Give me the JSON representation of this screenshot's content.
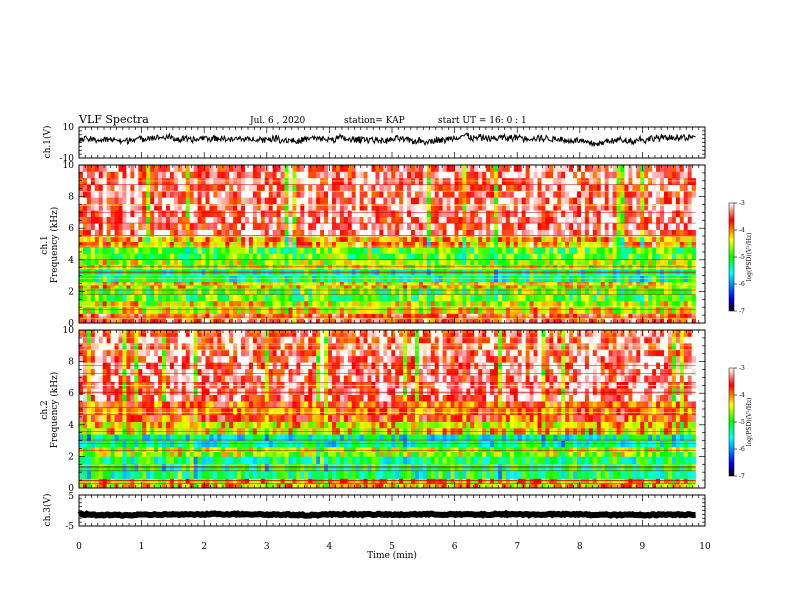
{
  "header": {
    "title": "VLF Spectra",
    "date": "Jul. 6 , 2020",
    "station": "station= KAP",
    "start": "start UT = 16: 0 : 1"
  },
  "chart_data": {
    "type": "heatmap",
    "xlabel": "Time (min)",
    "xlim": [
      0,
      10
    ],
    "xticks": [
      "0",
      "1",
      "2",
      "3",
      "4",
      "5",
      "6",
      "7",
      "8",
      "9",
      "10"
    ],
    "data_end_min": 9.85,
    "panels": [
      {
        "id": "ch1-waveform",
        "type": "line",
        "ylabel": "ch.1(V)",
        "ylim": [
          -10,
          10
        ],
        "yticks": [
          "10",
          "-10"
        ],
        "approx_level": 2,
        "noise_amplitude": 4
      },
      {
        "id": "ch1-spectrogram",
        "type": "heatmap",
        "ylabel": "ch.1",
        "ylabel2": "Frequency (kHz)",
        "ylim": [
          0,
          10
        ],
        "yticks": [
          "0",
          "2",
          "4",
          "6",
          "8",
          "10"
        ],
        "colorbar": {
          "label": "log(PSD)(V²/Hz)",
          "range": [
            -7,
            -3
          ],
          "ticks": [
            "-3",
            "-4",
            "-5",
            "-6",
            "-7"
          ]
        },
        "bands": [
          {
            "from": 0,
            "to": 0.6,
            "level": -3.6
          },
          {
            "from": 0.6,
            "to": 1.4,
            "level": -4.4
          },
          {
            "from": 1.4,
            "to": 2.2,
            "level": -4.9
          },
          {
            "from": 2.2,
            "to": 2.6,
            "level": -4.3
          },
          {
            "from": 2.6,
            "to": 3.4,
            "level": -5.3
          },
          {
            "from": 3.4,
            "to": 4.0,
            "level": -4.6
          },
          {
            "from": 4.0,
            "to": 4.8,
            "level": -4.9
          },
          {
            "from": 4.8,
            "to": 5.5,
            "level": -4.2
          },
          {
            "from": 5.5,
            "to": 10,
            "level": -3.4
          }
        ]
      },
      {
        "id": "ch2-spectrogram",
        "type": "heatmap",
        "ylabel": "ch.2",
        "ylabel2": "Frequency (kHz)",
        "ylim": [
          0,
          10
        ],
        "yticks": [
          "0",
          "2",
          "4",
          "6",
          "8",
          "10"
        ],
        "colorbar": {
          "label": "log(PSD)(V²/Hz)",
          "range": [
            -7,
            -3
          ],
          "ticks": [
            "-3",
            "-4",
            "-5",
            "-6",
            "-7"
          ]
        },
        "bands": [
          {
            "from": 0,
            "to": 0.6,
            "level": -4.2
          },
          {
            "from": 0.6,
            "to": 2.0,
            "level": -5.2
          },
          {
            "from": 2.0,
            "to": 2.6,
            "level": -4.6
          },
          {
            "from": 2.6,
            "to": 3.4,
            "level": -5.4
          },
          {
            "from": 3.4,
            "to": 4.2,
            "level": -4.3
          },
          {
            "from": 4.2,
            "to": 5.5,
            "level": -3.8
          },
          {
            "from": 5.5,
            "to": 10,
            "level": -3.4
          }
        ]
      },
      {
        "id": "ch3-waveform",
        "type": "line",
        "ylabel": "ch.3(V)",
        "ylim": [
          -5,
          5
        ],
        "yticks": [
          "5",
          "-5"
        ],
        "approx_level": -1.3,
        "noise_amplitude": 0.4
      }
    ]
  },
  "colors": {
    "scale": [
      "#000000",
      "#0000ff",
      "#00ffff",
      "#00ff00",
      "#ffff00",
      "#ff0000",
      "#ffffff"
    ],
    "line": "#000000"
  }
}
